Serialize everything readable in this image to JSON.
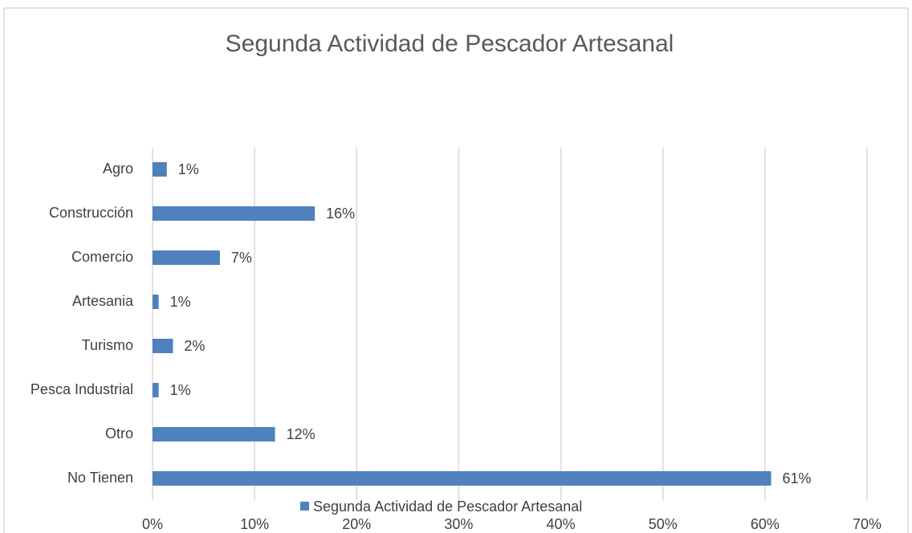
{
  "chart_data": {
    "type": "barh",
    "title": "Segunda Actividad de Pescador Artesanal",
    "categories": [
      "Agro",
      "Construcción",
      "Comercio",
      "Artesania",
      "Turismo",
      "Pesca Industrial",
      "Otro",
      "No Tienen"
    ],
    "series": [
      {
        "name": "Segunda Actividad de Pescador Artesanal",
        "color": "#4f81bd",
        "values": [
          1.4,
          15.9,
          6.6,
          0.6,
          2.0,
          0.6,
          12.0,
          60.6
        ],
        "value_labels": [
          "1%",
          "16%",
          "7%",
          "1%",
          "2%",
          "1%",
          "12%",
          "61%"
        ]
      }
    ],
    "xlim": [
      0,
      70
    ],
    "xticks": [
      {
        "value": 0,
        "label": "0%"
      },
      {
        "value": 10,
        "label": "10%"
      },
      {
        "value": 20,
        "label": "20%"
      },
      {
        "value": 30,
        "label": "30%"
      },
      {
        "value": 40,
        "label": "40%"
      },
      {
        "value": 50,
        "label": "50%"
      },
      {
        "value": 60,
        "label": "60%"
      },
      {
        "value": 70,
        "label": "70%"
      }
    ],
    "grid": true,
    "legend": "bottom"
  }
}
